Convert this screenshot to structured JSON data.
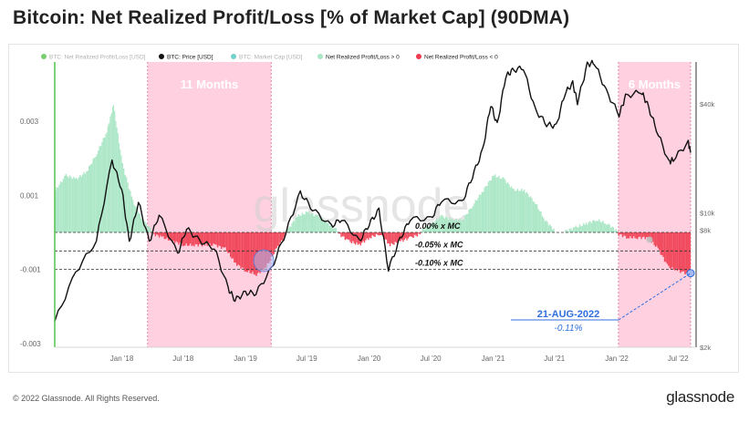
{
  "page": {
    "title": "Bitcoin: Net Realized Profit/Loss [% of Market Cap] (90DMA)",
    "footer": "© 2022 Glassnode. All Rights Reserved.",
    "logo": "glassnode",
    "watermark": "glassnode"
  },
  "colors": {
    "profit_fill": "#a8e6c4",
    "profit_line": "#6fd39f",
    "loss_fill": "#f03a4e",
    "loss_line": "#e0253c",
    "price_line": "#111111",
    "highlight": "#ffd1e0",
    "callout": "#2f6fdd",
    "axis_text": "#666666"
  },
  "chart_data": {
    "type": "area",
    "title": "Bitcoin: Net Realized Profit/Loss [% of Market Cap] (90DMA)",
    "legend": {
      "placement": "top",
      "items": [
        {
          "label": "BTC: Net Realized Profit/Loss [USD]",
          "color": "#56c24f",
          "muted": true
        },
        {
          "label": "BTC: Price [USD]",
          "color": "#111111",
          "muted": false
        },
        {
          "label": "BTC: Market Cap [USD]",
          "color": "#4fc6c0",
          "muted": true
        },
        {
          "label": "Net Realized Profit/Loss > 0",
          "color": "#a8e6c4",
          "muted": false
        },
        {
          "label": "Net Realized Profit/Loss < 0",
          "color": "#f03a4e",
          "muted": false
        }
      ]
    },
    "x_ticks": [
      "Jan '18",
      "Jul '18",
      "Jan '19",
      "Jul '19",
      "Jan '20",
      "Jul '20",
      "Jan '21",
      "Jul '21",
      "Jan '22",
      "Jul '22"
    ],
    "y_left_ticks": [
      "0.003",
      "0.001",
      "-0.001",
      "-0.003"
    ],
    "y_left_values": [
      0.003,
      0.001,
      -0.001,
      -0.003
    ],
    "ylim_left": [
      -0.0031,
      0.0046
    ],
    "y_right_ticks": [
      "$40k",
      "$10k",
      "$8k",
      "$2k"
    ],
    "grid": false,
    "series": [
      {
        "name": "Net Realized Profit/Loss [% of Market Cap] (90DMA)",
        "x": [
          "2017-07-01",
          "2017-08-01",
          "2017-09-01",
          "2017-10-01",
          "2017-11-01",
          "2017-12-01",
          "2017-12-20",
          "2018-01-15",
          "2018-02-15",
          "2018-03-15",
          "2018-04-15",
          "2018-05-15",
          "2018-06-15",
          "2018-07-15",
          "2018-08-15",
          "2018-09-15",
          "2018-10-15",
          "2018-11-15",
          "2018-12-15",
          "2019-01-15",
          "2019-02-15",
          "2019-03-15",
          "2019-04-15",
          "2019-05-15",
          "2019-06-15",
          "2019-07-15",
          "2019-08-15",
          "2019-09-15",
          "2019-10-15",
          "2019-11-15",
          "2019-12-15",
          "2020-01-15",
          "2020-02-15",
          "2020-03-15",
          "2020-04-15",
          "2020-05-15",
          "2020-06-15",
          "2020-07-15",
          "2020-08-15",
          "2020-09-15",
          "2020-10-15",
          "2020-11-15",
          "2020-12-15",
          "2021-01-15",
          "2021-02-15",
          "2021-03-15",
          "2021-04-15",
          "2021-05-15",
          "2021-06-15",
          "2021-07-15",
          "2021-08-15",
          "2021-09-15",
          "2021-10-15",
          "2021-11-15",
          "2021-12-15",
          "2022-01-15",
          "2022-02-15",
          "2022-03-15",
          "2022-04-15",
          "2022-05-15",
          "2022-06-15",
          "2022-07-15",
          "2022-08-21"
        ],
        "values": [
          0.0011,
          0.0015,
          0.0014,
          0.0016,
          0.0021,
          0.0027,
          0.0034,
          0.0018,
          0.0008,
          0.0003,
          0.0,
          -0.0001,
          -0.0002,
          -0.0003,
          -0.0003,
          -0.0003,
          -0.0003,
          -0.0004,
          -0.0008,
          -0.001,
          -0.0011,
          -0.0009,
          -0.0004,
          0.0,
          0.0004,
          0.0005,
          0.0004,
          0.0002,
          0.0,
          -0.0002,
          -0.0003,
          -0.0001,
          0.0,
          -0.0003,
          -0.0002,
          -0.0001,
          0.0,
          0.0002,
          0.0004,
          0.0003,
          0.0003,
          0.0007,
          0.0011,
          0.0015,
          0.0014,
          0.0011,
          0.0011,
          0.0008,
          0.0003,
          0.0,
          0.0,
          0.0001,
          0.0002,
          0.0003,
          0.0002,
          0.0,
          -0.0001,
          -0.0001,
          -0.0001,
          -0.0004,
          -0.0009,
          -0.001,
          -0.0011
        ]
      },
      {
        "name": "BTC: Price [USD]",
        "x": [
          "2017-07-01",
          "2017-09-01",
          "2017-11-01",
          "2017-12-17",
          "2018-01-15",
          "2018-02-06",
          "2018-03-05",
          "2018-04-06",
          "2018-05-05",
          "2018-06-29",
          "2018-07-25",
          "2018-09-01",
          "2018-10-15",
          "2018-11-25",
          "2018-12-15",
          "2019-01-15",
          "2019-02-15",
          "2019-04-02",
          "2019-05-15",
          "2019-06-26",
          "2019-08-01",
          "2019-09-25",
          "2019-10-26",
          "2019-12-17",
          "2020-01-15",
          "2020-02-13",
          "2020-03-12",
          "2020-04-15",
          "2020-05-15",
          "2020-07-15",
          "2020-08-15",
          "2020-10-15",
          "2020-11-15",
          "2020-12-15",
          "2021-01-08",
          "2021-01-27",
          "2021-02-21",
          "2021-03-13",
          "2021-04-14",
          "2021-05-19",
          "2021-06-22",
          "2021-07-20",
          "2021-08-15",
          "2021-09-07",
          "2021-09-21",
          "2021-10-20",
          "2021-11-10",
          "2021-12-15",
          "2022-01-22",
          "2022-02-10",
          "2022-03-28",
          "2022-04-15",
          "2022-05-12",
          "2022-06-18",
          "2022-07-01",
          "2022-08-14",
          "2022-08-21"
        ],
        "values": [
          2500,
          4700,
          7000,
          19500,
          13500,
          6900,
          11500,
          6900,
          9800,
          5900,
          8200,
          7000,
          6400,
          3800,
          3300,
          3600,
          3600,
          4900,
          7900,
          12900,
          10500,
          8400,
          9300,
          6900,
          8700,
          10300,
          4900,
          7100,
          9300,
          9200,
          11800,
          11300,
          16000,
          22000,
          40000,
          30500,
          57000,
          61000,
          64000,
          37000,
          31000,
          30000,
          46000,
          52000,
          41000,
          66000,
          68000,
          47000,
          35000,
          44000,
          47000,
          40000,
          29000,
          19000,
          19800,
          24500,
          21500
        ]
      }
    ],
    "reference_lines": [
      {
        "label": "0.00% x MC",
        "y": 0.0
      },
      {
        "label": "-0.05% x MC",
        "y": -0.0005
      },
      {
        "label": "-0.10% x MC",
        "y": -0.001
      }
    ],
    "highlight_periods": [
      {
        "label": "11 Months",
        "start": "2018-04-01",
        "end": "2019-04-01"
      },
      {
        "label": "6 Months",
        "start": "2022-01-20",
        "end": "2022-08-21"
      }
    ],
    "callout": {
      "date": "21-AUG-2022",
      "value": "-0.11%"
    }
  }
}
